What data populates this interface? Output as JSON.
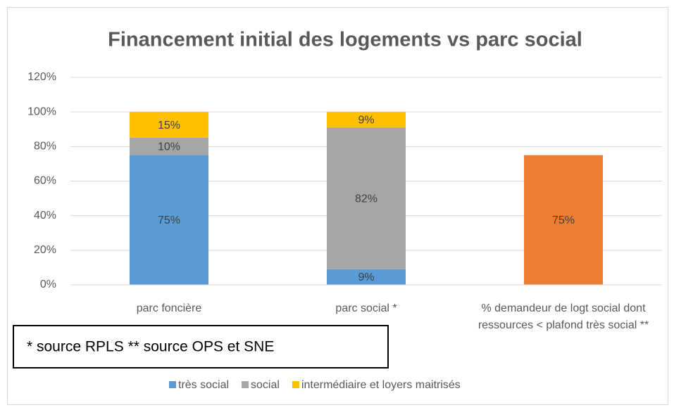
{
  "chart_data": {
    "type": "stacked_bar",
    "title": "Financement initial des logements vs parc social",
    "categories": [
      "parc foncière",
      "parc social *",
      "% demandeur de logt social dont ressources < plafond très social **"
    ],
    "series": [
      {
        "name": "très social",
        "color": "#5b9bd5",
        "colors": [
          "#5b9bd5",
          "#5b9bd5",
          "#ed7d31"
        ],
        "values": [
          75,
          9,
          75
        ],
        "value_labels": [
          "75%",
          "9%",
          "75%"
        ]
      },
      {
        "name": "social",
        "color": "#a5a5a5",
        "values": [
          10,
          82,
          null
        ],
        "value_labels": [
          "10%",
          "82%",
          null
        ]
      },
      {
        "name": "intermédiaire et loyers maitrisés",
        "color": "#ffc000",
        "values": [
          15,
          9,
          null
        ],
        "value_labels": [
          "15%",
          "9%",
          null
        ]
      }
    ],
    "ylim": [
      0,
      120
    ],
    "yticks": [
      {
        "value": 0,
        "label": "0%"
      },
      {
        "value": 20,
        "label": "20%"
      },
      {
        "value": 40,
        "label": "40%"
      },
      {
        "value": 60,
        "label": "60%"
      },
      {
        "value": 80,
        "label": "80%"
      },
      {
        "value": 100,
        "label": "100%"
      },
      {
        "value": 120,
        "label": "120%"
      }
    ],
    "grid": true,
    "legend": "bottom",
    "annotations": [
      "* source RPLS  ** source OPS et SNE"
    ]
  }
}
